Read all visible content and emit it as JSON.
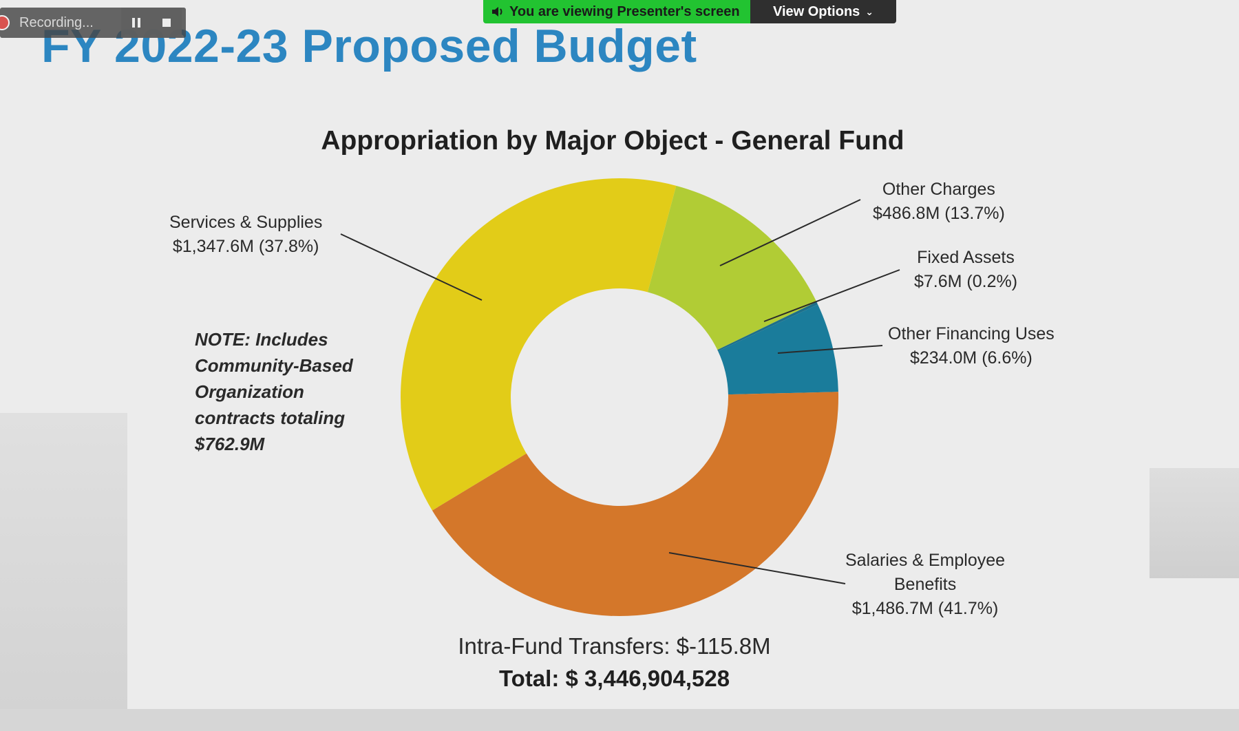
{
  "slide": {
    "title": "FY 2022-23 Proposed Budget",
    "note": "NOTE:  Includes Community-Based Organization contracts totaling $762.9M",
    "intra_fund": "Intra-Fund  Transfers: $-115.8M",
    "total": "Total: $ 3,446,904,528"
  },
  "labels": {
    "services": [
      "Services & Supplies",
      "$1,347.6M (37.8%)"
    ],
    "other_charges": [
      "Other Charges",
      "$486.8M (13.7%)"
    ],
    "fixed_assets": [
      "Fixed Assets",
      "$7.6M (0.2%)"
    ],
    "other_financing": [
      "Other Financing Uses",
      "$234.0M (6.6%)"
    ],
    "salaries": [
      "Salaries & Employee",
      "Benefits",
      "$1,486.7M (41.7%)"
    ]
  },
  "chart_data": {
    "type": "pie",
    "title": "Appropriation by Major Object - General Fund",
    "categories": [
      "Other Charges",
      "Fixed Assets",
      "Other Financing Uses",
      "Salaries & Employee Benefits",
      "Services & Supplies"
    ],
    "values": [
      486.8,
      7.6,
      234.0,
      1486.7,
      1347.6
    ],
    "percent": [
      13.7,
      0.2,
      6.6,
      41.7,
      37.8
    ],
    "unit": "$M",
    "donut": true,
    "colors": [
      "#b1cc35",
      "#1e6f8a",
      "#1a7c9b",
      "#d4772a",
      "#e2cc18"
    ]
  },
  "overlay": {
    "recording": "Recording...",
    "viewing": "You are viewing Presenter's screen",
    "view_options": "View Options",
    "icons": [
      "record-icon",
      "pause-icon",
      "stop-icon",
      "speaker-icon",
      "chevron-down-icon"
    ],
    "colors": {
      "banner": "#22c331",
      "view_options_bg": "#2f2f2f",
      "recording_bg": "#464646"
    }
  },
  "theme": {
    "title_color": "#2c86c1",
    "slide_bg": "#ececec"
  }
}
